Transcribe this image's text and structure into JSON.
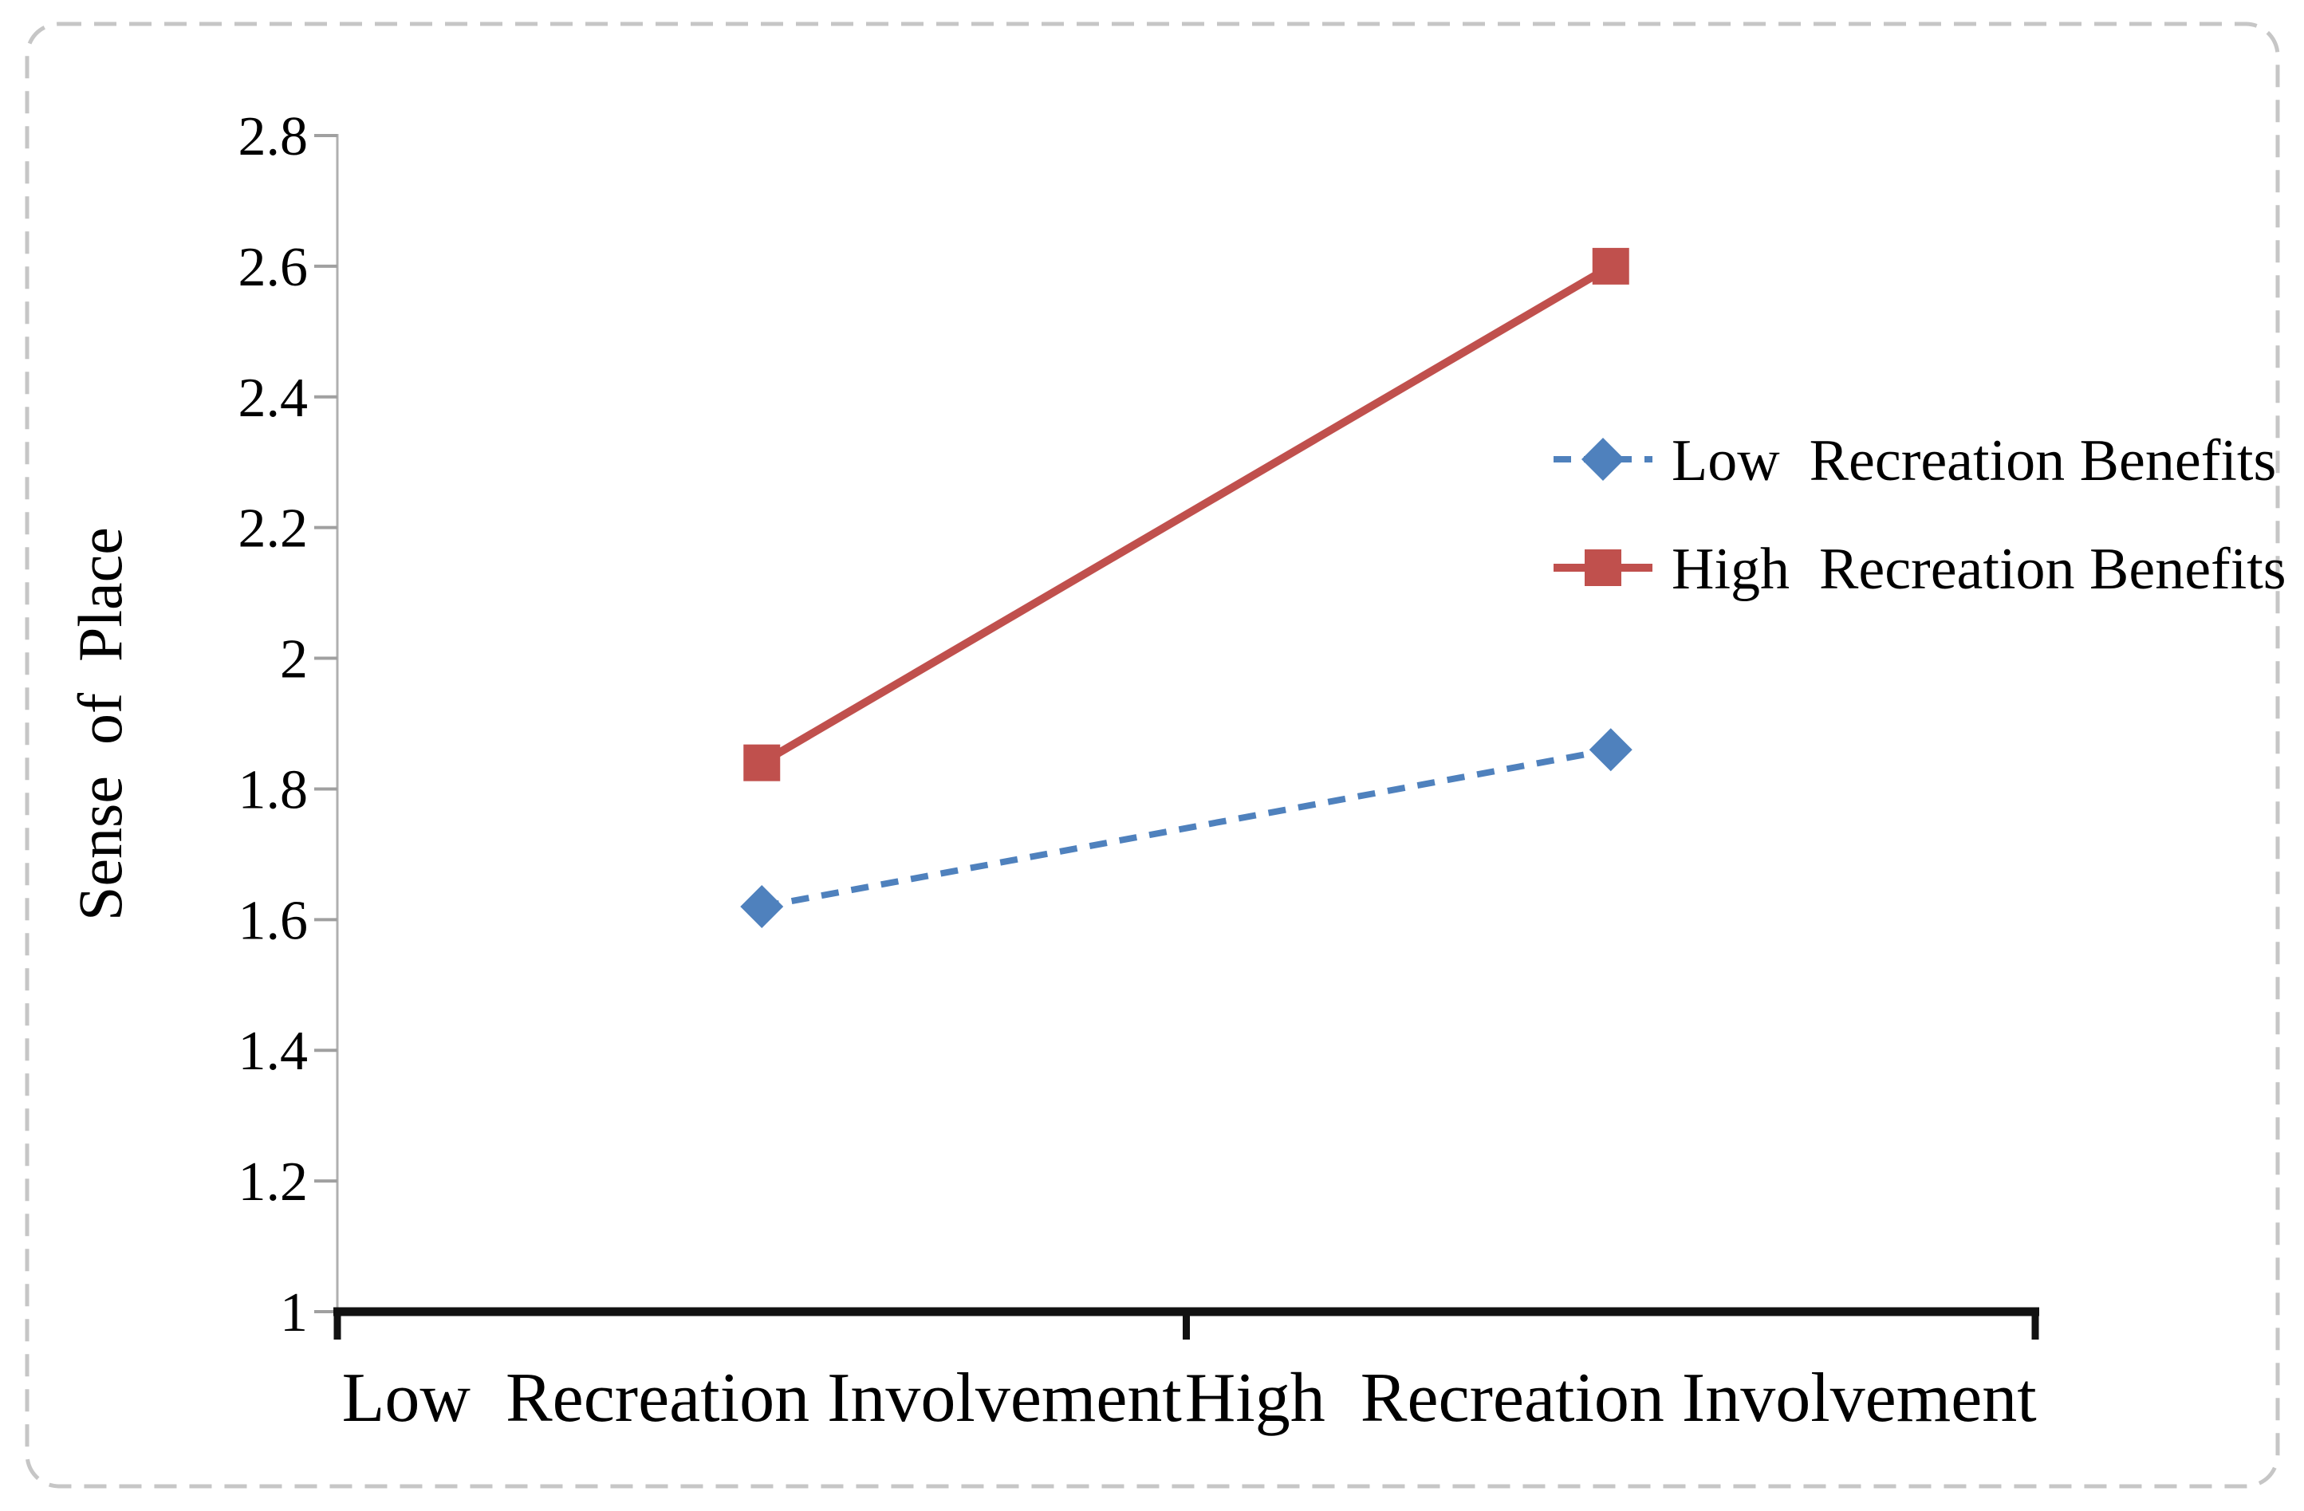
{
  "figure": {
    "background": "#ffffff",
    "border_color": "#c6c6c6"
  },
  "chart_data": {
    "type": "line",
    "title": "",
    "categories": [
      "Low  Recreation Involvement",
      "High  Recreation Involvement"
    ],
    "series": [
      {
        "name": "Low  Recreation Benefits",
        "values": [
          1.62,
          1.86
        ],
        "color": "#4F81BD",
        "marker": "diamond",
        "line_style": "dashed"
      },
      {
        "name": "High  Recreation Benefits",
        "values": [
          1.84,
          2.6
        ],
        "color": "#C0504D",
        "marker": "square",
        "line_style": "solid"
      }
    ],
    "xlabel": "",
    "ylabel": "Sense  of  Place",
    "ylim": [
      1,
      2.8
    ],
    "yticks": [
      1,
      1.2,
      1.4,
      1.6,
      1.8,
      2,
      2.2,
      2.4,
      2.6,
      2.8
    ],
    "ytick_labels": [
      "1",
      "1.2",
      "1.4",
      "1.6",
      "1.8",
      "2",
      "2.2",
      "2.4",
      "2.6",
      "2.8"
    ],
    "grid": false,
    "legend_position": "right-center",
    "axis_colors": {
      "y_axis_line": "#b0b0b0",
      "y_tick": "#a0a0a0",
      "x_axis_line": "#111111",
      "text": "#000000"
    }
  }
}
